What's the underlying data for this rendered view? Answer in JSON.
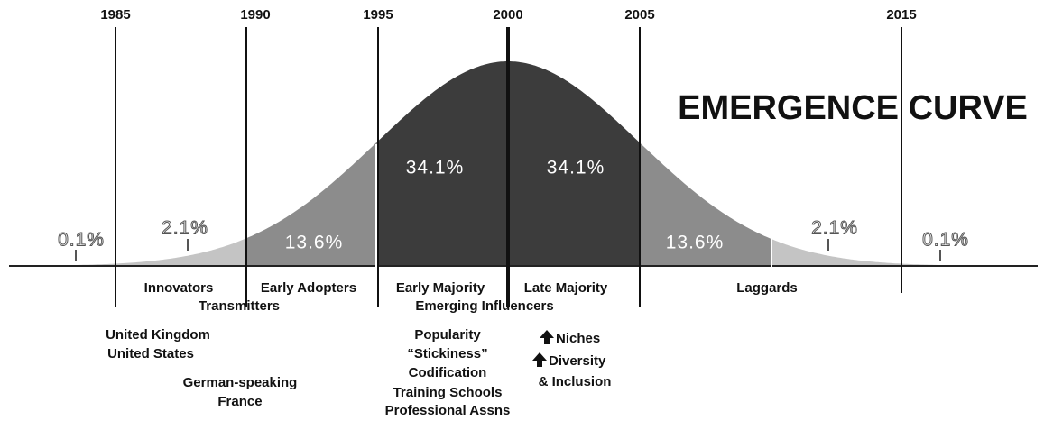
{
  "title": "EMERGENCE CURVE",
  "years": [
    "1985",
    "1990",
    "1995",
    "2000",
    "2005",
    "2015"
  ],
  "percentages": [
    "0.1%",
    "2.1%",
    "13.6%",
    "34.1%",
    "34.1%",
    "13.6%",
    "2.1%",
    "0.1%"
  ],
  "stages": [
    "Innovators",
    "Early Adopters",
    "Early Majority",
    "Late Majority",
    "Laggards"
  ],
  "roles": [
    "Transmitters",
    "Emerging Influencers"
  ],
  "countries": [
    "United Kingdom",
    "United States",
    "German-speaking",
    "France"
  ],
  "attributes": [
    "Popularity",
    "“Stickiness”",
    "Codification",
    "Training Schools",
    "Professional Assns"
  ],
  "trends": [
    "Niches",
    "Diversity",
    "& Inclusion"
  ]
}
